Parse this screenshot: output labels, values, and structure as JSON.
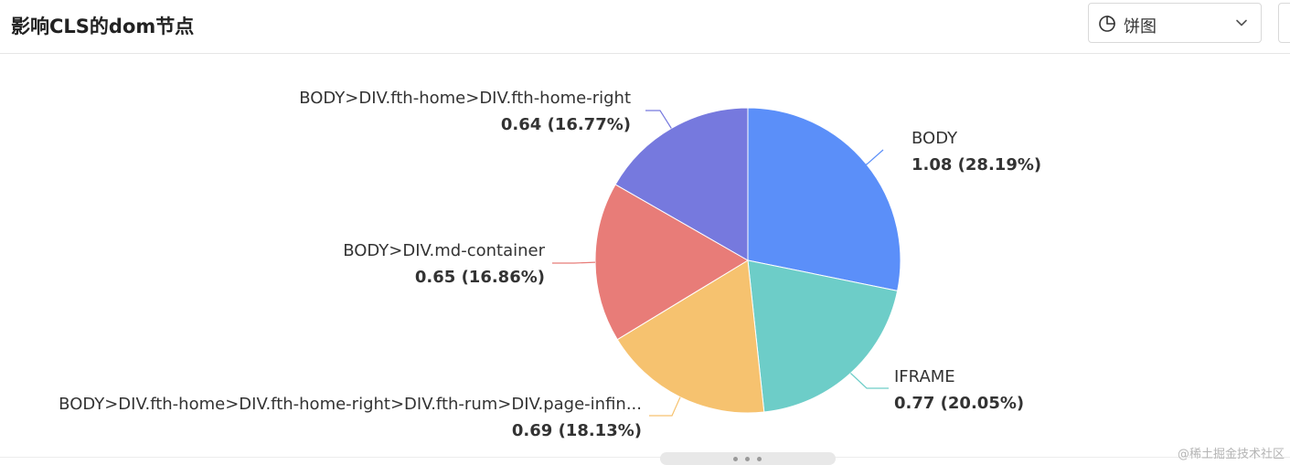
{
  "header": {
    "title": "影响CLS的dom节点",
    "chart_type_select": {
      "selected": "饼图",
      "icon": "pie-chart-icon"
    }
  },
  "chart_data": {
    "type": "pie",
    "title": "",
    "start_angle_deg": 90,
    "direction": "clockwise",
    "slices": [
      {
        "name": "BODY",
        "value": 1.08,
        "label_value": "1.08",
        "percent": "28.19%",
        "color": "#5b8ff9"
      },
      {
        "name": "IFRAME",
        "value": 0.77,
        "label_value": "0.77",
        "percent": "20.05%",
        "color": "#6dcdc8"
      },
      {
        "name": "BODY>DIV.fth-home>DIV.fth-home-right>DIV.fth-rum>DIV.page-infin...",
        "value": 0.69,
        "label_value": "0.69",
        "percent": "18.13%",
        "color": "#f6c26f"
      },
      {
        "name": "BODY>DIV.md-container",
        "value": 0.65,
        "label_value": "0.65",
        "percent": "16.86%",
        "color": "#e87c78"
      },
      {
        "name": "BODY>DIV.fth-home>DIV.fth-home-right",
        "value": 0.64,
        "label_value": "0.64",
        "percent": "16.77%",
        "color": "#7679de"
      }
    ]
  },
  "watermark": "@稀土掘金技术社区"
}
